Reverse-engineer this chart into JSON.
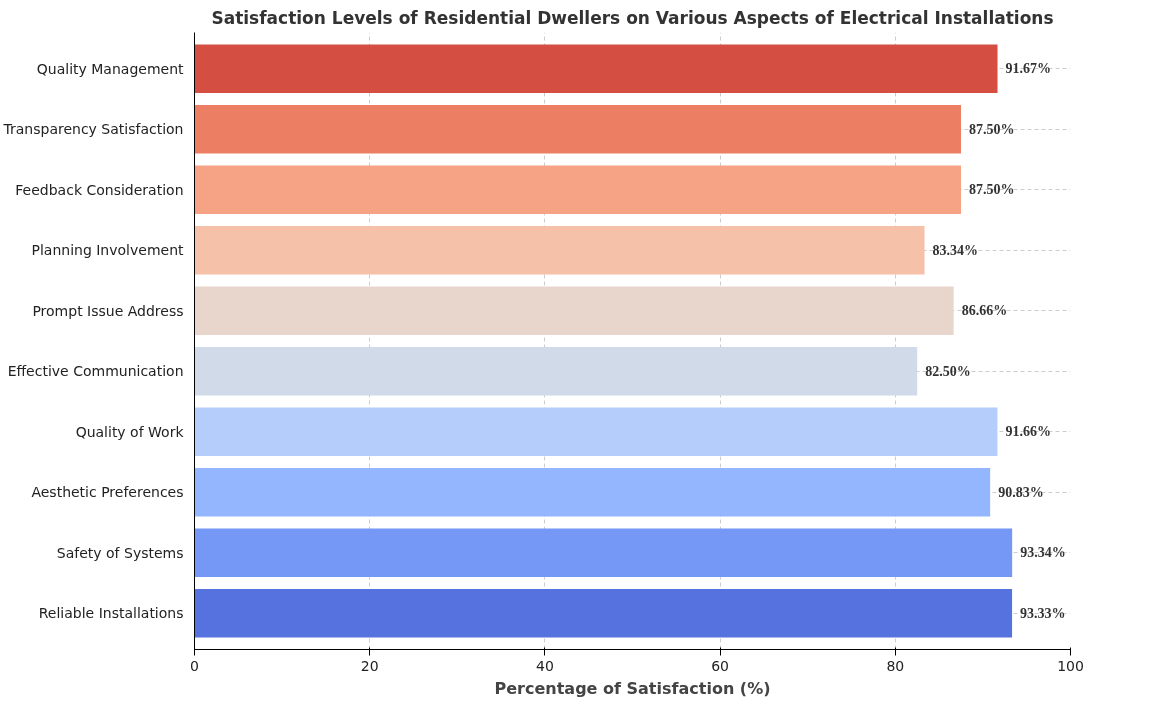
{
  "chart_data": {
    "type": "bar",
    "orientation": "horizontal",
    "title": "Satisfaction Levels of Residential Dwellers on Various Aspects of Electrical Installations",
    "xlabel": "Percentage of Satisfaction (%)",
    "categories": [
      "Quality Management",
      "Transparency Satisfaction",
      "Feedback Consideration",
      "Planning Involvement",
      "Prompt Issue Address",
      "Effective Communication",
      "Quality of Work",
      "Aesthetic Preferences",
      "Safety of Systems",
      "Reliable Installations"
    ],
    "values": [
      91.67,
      87.5,
      87.5,
      83.34,
      86.66,
      82.5,
      91.66,
      90.83,
      93.34,
      93.33
    ],
    "value_labels": [
      "91.67%",
      "87.50%",
      "87.50%",
      "83.34%",
      "86.66%",
      "82.50%",
      "91.66%",
      "90.83%",
      "93.34%",
      "93.33%"
    ],
    "colors": [
      "#d44e41",
      "#ec7f63",
      "#f6a385",
      "#f5c1a9",
      "#e8d6cc",
      "#d1dae9",
      "#b5cdfa",
      "#94b6ff",
      "#7597f6",
      "#5572df"
    ],
    "xlim": [
      0,
      100
    ],
    "xticks": [
      0,
      20,
      40,
      60,
      80,
      100
    ],
    "grid": true
  }
}
